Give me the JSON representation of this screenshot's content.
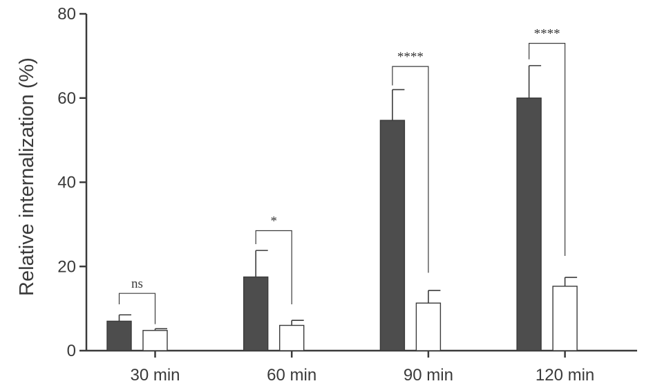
{
  "chart_data": {
    "type": "bar",
    "title": "",
    "xlabel": "",
    "ylabel": "Relative internalization (%)",
    "ylim": [
      0,
      80
    ],
    "yticks": [
      0,
      20,
      40,
      60,
      80
    ],
    "grid": false,
    "legend": "none",
    "categories": [
      "30 min",
      "60 min",
      "90 min",
      "120 min"
    ],
    "series": [
      {
        "fill": "#4d4d4d",
        "stroke": "#3a3a3a",
        "values": [
          7,
          17.5,
          54.7,
          60
        ],
        "errors": [
          1.5,
          6.3,
          7.3,
          7.7
        ]
      },
      {
        "fill": "#ffffff",
        "stroke": "#3a3a3a",
        "values": [
          4.8,
          6,
          11.3,
          15.3
        ],
        "errors": [
          0.4,
          1.2,
          3,
          2.1
        ]
      }
    ],
    "significance": [
      {
        "label": "ns",
        "y_top": 13.6,
        "y_left": 11,
        "y_right": 6.3
      },
      {
        "label": "*",
        "y_top": 28.5,
        "y_left": 25.3,
        "y_right": 11
      },
      {
        "label": "****",
        "y_top": 67.5,
        "y_left": 63,
        "y_right": 18.5
      },
      {
        "label": "****",
        "y_top": 73,
        "y_left": 69.2,
        "y_right": 22.5
      }
    ]
  }
}
